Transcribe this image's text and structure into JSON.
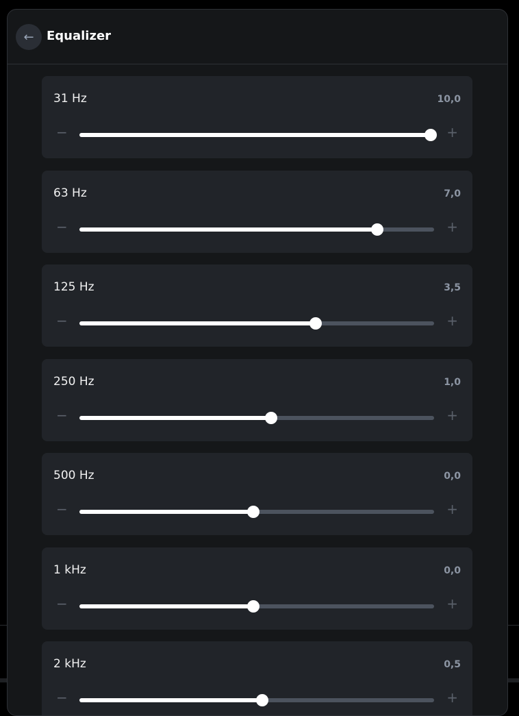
{
  "header": {
    "title": "Equalizer",
    "back_icon": "arrow-left-icon"
  },
  "slider_range": [
    -10,
    10
  ],
  "bands": [
    {
      "label": "31 Hz",
      "value_text": "10,0",
      "value": 10
    },
    {
      "label": "63 Hz",
      "value_text": "7,0",
      "value": 7
    },
    {
      "label": "125 Hz",
      "value_text": "3,5",
      "value": 3.5
    },
    {
      "label": "250 Hz",
      "value_text": "1,0",
      "value": 1
    },
    {
      "label": "500 Hz",
      "value_text": "0,0",
      "value": 0
    },
    {
      "label": "1 kHz",
      "value_text": "0,0",
      "value": 0
    },
    {
      "label": "2 kHz",
      "value_text": "0,5",
      "value": 0.5
    }
  ],
  "controls": {
    "minus": "−",
    "plus": "+"
  },
  "colors": {
    "background": "#151719",
    "card": "#212429",
    "track": "#4c535e",
    "fill": "#ffffff"
  }
}
